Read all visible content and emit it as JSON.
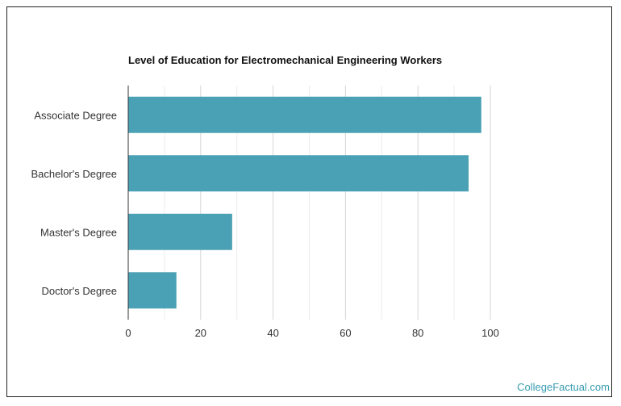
{
  "chart_data": {
    "type": "bar",
    "orientation": "horizontal",
    "title": "Level of Education for Electromechanical Engineering Workers",
    "categories": [
      "Associate Degree",
      "Bachelor's Degree",
      "Master's Degree",
      "Doctor's Degree"
    ],
    "values": [
      97.5,
      94,
      28.7,
      13.3
    ],
    "xlim": [
      0,
      100
    ],
    "xticks": [
      "0",
      "20",
      "40",
      "60",
      "80",
      "100"
    ],
    "xlabel": "",
    "ylabel": "",
    "grid": true,
    "bar_color": "#4aa0b4"
  },
  "watermark": "CollegeFactual.com"
}
